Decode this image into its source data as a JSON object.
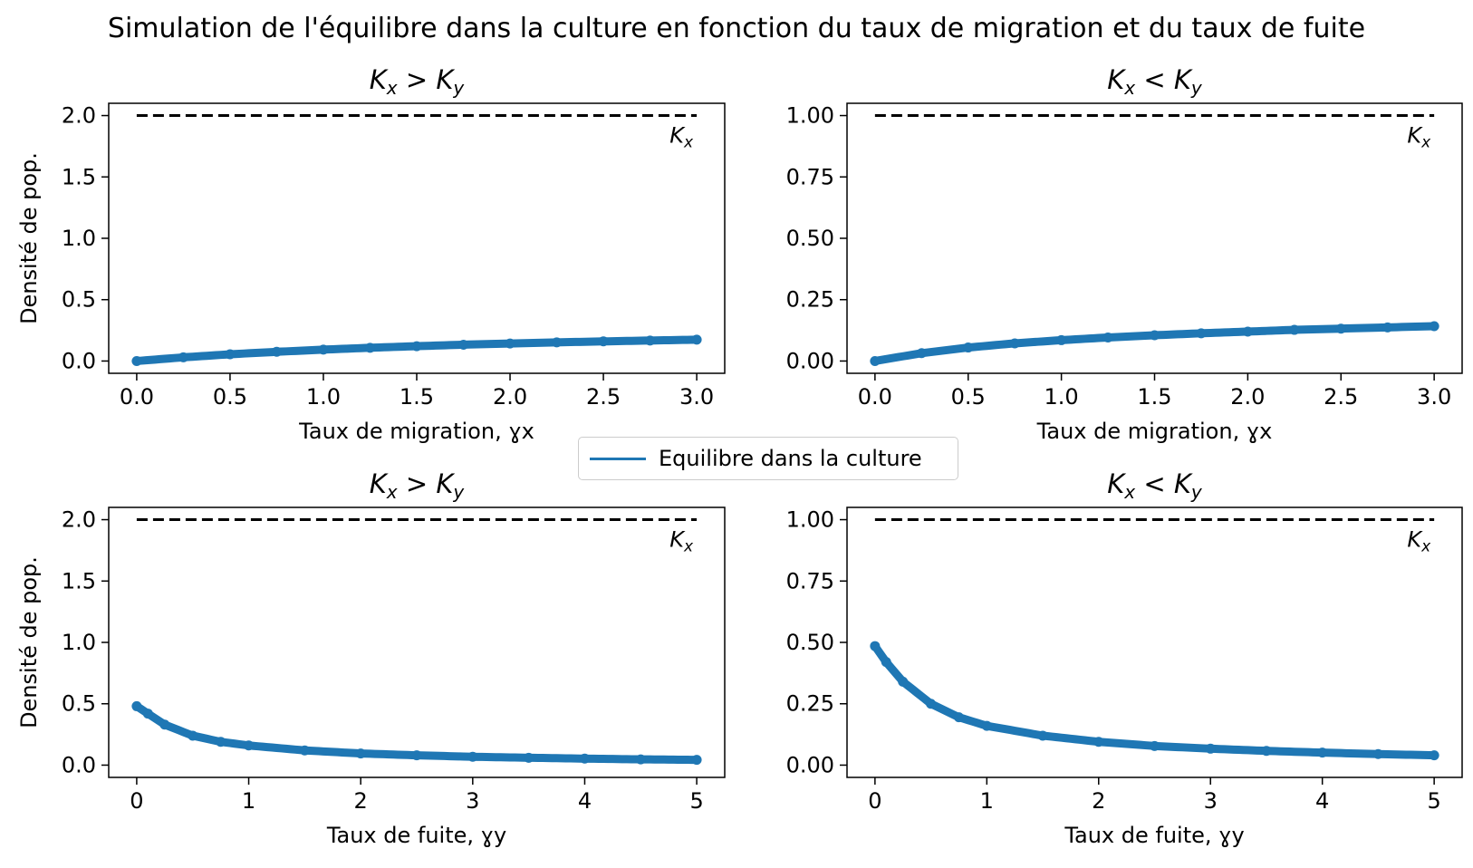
{
  "figure": {
    "suptitle": "Simulation de l'équilibre dans la culture en fonction du taux de migration et du taux de fuite",
    "legend_label": "Equilibre dans la culture",
    "series_color": "#1f77b4",
    "reference_color": "#000000"
  },
  "chart_data": [
    {
      "type": "scatter",
      "title": "K_x > K_y",
      "xlabel": "Taux de migration, ɣx",
      "ylabel": "Densité de pop.",
      "xlim": [
        -0.15,
        3.15
      ],
      "ylim": [
        -0.1,
        2.1
      ],
      "xticks": [
        0.0,
        0.5,
        1.0,
        1.5,
        2.0,
        2.5,
        3.0
      ],
      "xtick_labels": [
        "0.0",
        "0.5",
        "1.0",
        "1.5",
        "2.0",
        "2.5",
        "3.0"
      ],
      "yticks": [
        0.0,
        0.5,
        1.0,
        1.5,
        2.0
      ],
      "ytick_labels": [
        "0.0",
        "0.5",
        "1.0",
        "1.5",
        "2.0"
      ],
      "reference_line": {
        "y": 2.0,
        "x_from": 0.0,
        "x_to": 3.0,
        "label": "K_x",
        "style": "dashed"
      },
      "series": [
        {
          "name": "Equilibre dans la culture",
          "x": [
            0.0,
            0.25,
            0.5,
            0.75,
            1.0,
            1.25,
            1.5,
            1.75,
            2.0,
            2.25,
            2.5,
            2.75,
            3.0
          ],
          "y": [
            0.0,
            0.03,
            0.055,
            0.075,
            0.093,
            0.108,
            0.121,
            0.133,
            0.143,
            0.152,
            0.16,
            0.167,
            0.174
          ]
        }
      ]
    },
    {
      "type": "scatter",
      "title": "K_x < K_y",
      "xlabel": "Taux de migration, ɣx",
      "ylabel": "",
      "xlim": [
        -0.15,
        3.15
      ],
      "ylim": [
        -0.05,
        1.05
      ],
      "xticks": [
        0.0,
        0.5,
        1.0,
        1.5,
        2.0,
        2.5,
        3.0
      ],
      "xtick_labels": [
        "0.0",
        "0.5",
        "1.0",
        "1.5",
        "2.0",
        "2.5",
        "3.0"
      ],
      "yticks": [
        0.0,
        0.25,
        0.5,
        0.75,
        1.0
      ],
      "ytick_labels": [
        "0.00",
        "0.25",
        "0.50",
        "0.75",
        "1.00"
      ],
      "reference_line": {
        "y": 1.0,
        "x_from": 0.0,
        "x_to": 3.0,
        "label": "K_x",
        "style": "dashed"
      },
      "series": [
        {
          "name": "Equilibre dans la culture",
          "x": [
            0.0,
            0.25,
            0.5,
            0.75,
            1.0,
            1.25,
            1.5,
            1.75,
            2.0,
            2.25,
            2.5,
            2.75,
            3.0
          ],
          "y": [
            0.0,
            0.032,
            0.055,
            0.072,
            0.085,
            0.096,
            0.105,
            0.113,
            0.12,
            0.127,
            0.132,
            0.137,
            0.142
          ]
        }
      ]
    },
    {
      "type": "scatter",
      "title": "K_x > K_y",
      "xlabel": "Taux de fuite, ɣy",
      "ylabel": "Densité de pop.",
      "xlim": [
        -0.25,
        5.25
      ],
      "ylim": [
        -0.1,
        2.1
      ],
      "xticks": [
        0,
        1,
        2,
        3,
        4,
        5
      ],
      "xtick_labels": [
        "0",
        "1",
        "2",
        "3",
        "4",
        "5"
      ],
      "yticks": [
        0.0,
        0.5,
        1.0,
        1.5,
        2.0
      ],
      "ytick_labels": [
        "0.0",
        "0.5",
        "1.0",
        "1.5",
        "2.0"
      ],
      "reference_line": {
        "y": 2.0,
        "x_from": 0.0,
        "x_to": 5.0,
        "label": "K_x",
        "style": "dashed"
      },
      "series": [
        {
          "name": "Equilibre dans la culture",
          "x": [
            0.0,
            0.1,
            0.25,
            0.5,
            0.75,
            1.0,
            1.5,
            2.0,
            2.5,
            3.0,
            3.5,
            4.0,
            4.5,
            5.0
          ],
          "y": [
            0.48,
            0.42,
            0.33,
            0.24,
            0.19,
            0.16,
            0.12,
            0.095,
            0.08,
            0.068,
            0.06,
            0.053,
            0.047,
            0.043
          ]
        }
      ]
    },
    {
      "type": "scatter",
      "title": "K_x < K_y",
      "xlabel": "Taux de fuite, ɣy",
      "ylabel": "",
      "xlim": [
        -0.25,
        5.25
      ],
      "ylim": [
        -0.05,
        1.05
      ],
      "xticks": [
        0,
        1,
        2,
        3,
        4,
        5
      ],
      "xtick_labels": [
        "0",
        "1",
        "2",
        "3",
        "4",
        "5"
      ],
      "yticks": [
        0.0,
        0.25,
        0.5,
        0.75,
        1.0
      ],
      "ytick_labels": [
        "0.00",
        "0.25",
        "0.50",
        "0.75",
        "1.00"
      ],
      "reference_line": {
        "y": 1.0,
        "x_from": 0.0,
        "x_to": 5.0,
        "label": "K_x",
        "style": "dashed"
      },
      "series": [
        {
          "name": "Equilibre dans la culture",
          "x": [
            0.0,
            0.1,
            0.25,
            0.5,
            0.75,
            1.0,
            1.5,
            2.0,
            2.5,
            3.0,
            3.5,
            4.0,
            4.5,
            5.0
          ],
          "y": [
            0.485,
            0.42,
            0.34,
            0.25,
            0.195,
            0.16,
            0.12,
            0.095,
            0.078,
            0.067,
            0.058,
            0.051,
            0.045,
            0.04
          ]
        }
      ]
    }
  ]
}
